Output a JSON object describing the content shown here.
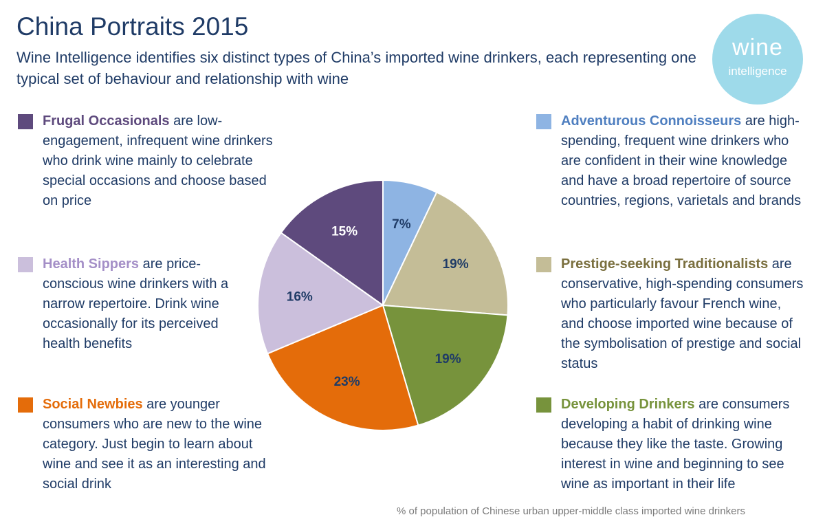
{
  "header": {
    "title": "China Portraits 2015",
    "subtitle": "Wine Intelligence identifies six distinct types of China’s imported wine drinkers, each representing one typical set of behaviour and relationship with wine"
  },
  "logo": {
    "main": "wine",
    "sub": "intelligence"
  },
  "segments": [
    {
      "name": "Frugal Occasionals",
      "description": " are low-engagement, infrequent wine drinkers who drink wine mainly to celebrate special occasions and choose based on price",
      "color": "#5e4a7d"
    },
    {
      "name": "Health Sippers",
      "description": " are price-conscious wine drinkers with a narrow repertoire. Drink wine occasionally for its perceived health benefits",
      "color": "#cbbfdc"
    },
    {
      "name": "Social Newbies",
      "description": " are younger consumers who are new to the wine category. Just begin to learn about wine and see it as an interesting and social drink",
      "color": "#e46c0a"
    },
    {
      "name": "Adventurous Connoisseurs",
      "description": " are high-spending, frequent wine drinkers who are confident in their wine knowledge and have a broad repertoire of source countries, regions, varietals and brands",
      "color": "#8eb4e3"
    },
    {
      "name": "Prestige-seeking Traditionalists",
      "description": " are conservative, high-spending consumers who particularly favour French wine, and choose imported wine because of the symbolisation of prestige and social status",
      "color": "#c4bd97"
    },
    {
      "name": "Developing Drinkers",
      "description": " are consumers developing a habit of drinking wine because they like the taste. Growing interest in wine and beginning to see wine as important in their life",
      "color": "#77933c"
    }
  ],
  "chart_data": {
    "type": "pie",
    "slices": [
      {
        "segment": "Adventurous Connoisseurs",
        "value": 7,
        "label": "7%",
        "color": "#8eb4e3",
        "label_color": "#1f3b66"
      },
      {
        "segment": "Prestige-seeking Traditionalists",
        "value": 19,
        "label": "19%",
        "color": "#c4bd97",
        "label_color": "#1f3b66"
      },
      {
        "segment": "Developing Drinkers",
        "value": 19,
        "label": "19%",
        "color": "#77933c",
        "label_color": "#1f3b66"
      },
      {
        "segment": "Social Newbies",
        "value": 23,
        "label": "23%",
        "color": "#e46c0a",
        "label_color": "#1f3b66"
      },
      {
        "segment": "Health Sippers",
        "value": 16,
        "label": "16%",
        "color": "#cbbfdc",
        "label_color": "#1f3b66"
      },
      {
        "segment": "Frugal Occasionals",
        "value": 15,
        "label": "15%",
        "color": "#5e4a7d",
        "label_color": "#ffffff"
      }
    ],
    "start": "12 o'clock",
    "direction": "clockwise"
  },
  "footnote": "% of population of Chinese urban upper-middle class imported wine drinkers"
}
